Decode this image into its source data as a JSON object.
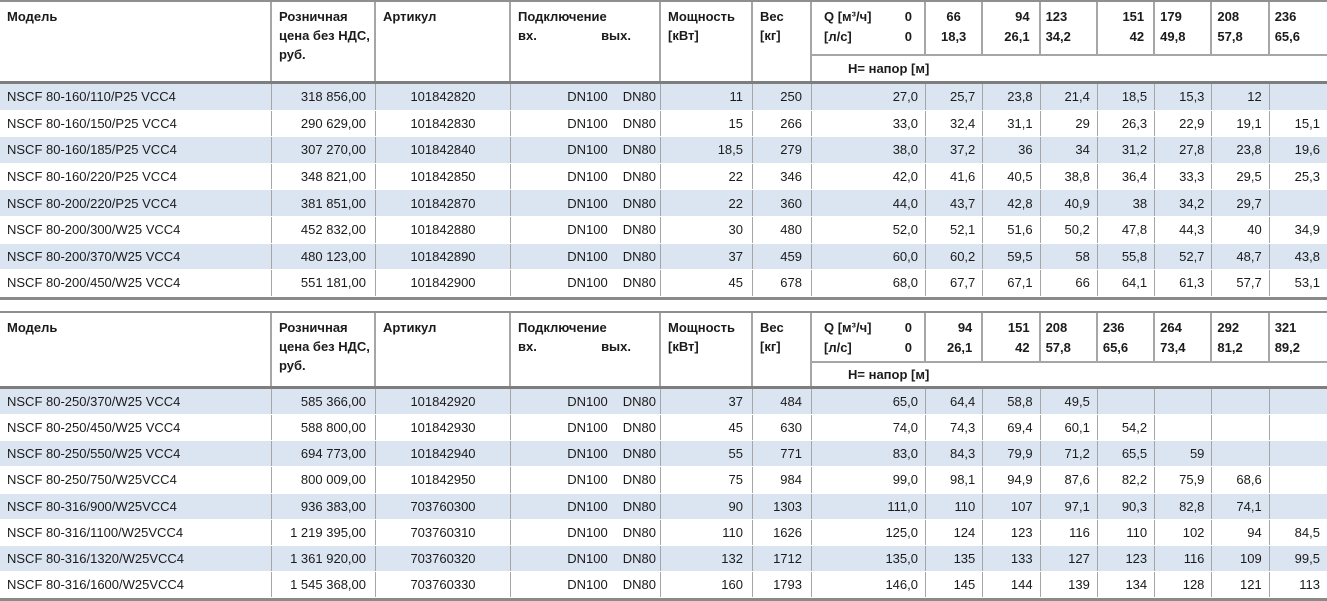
{
  "theme": {
    "row_alt_color": "#dbe5f1",
    "row_color": "#ffffff",
    "grid_line_color": "#a6a6a6",
    "frame_line_color": "#8a8a8a",
    "text_color": "#1b1b1b"
  },
  "tables": [
    {
      "header": {
        "model": "Модель",
        "price_lines": [
          "Розничная",
          "цена без НДС,",
          "руб."
        ],
        "article": "Артикул",
        "connection": "Подключение",
        "connection_in": "вх.",
        "connection_out": "вых.",
        "power_lines": [
          "Мощность",
          "[кВт]"
        ],
        "weight_lines": [
          "Вес",
          "[кг]"
        ],
        "q_label": "Q [м³/ч]",
        "q_zero": "0",
        "ls_label": "[л/с]",
        "ls_zero": "0",
        "h_label": "Н= напор [м]",
        "q_m3h": [
          "66",
          "94",
          "123",
          "151",
          "179",
          "208",
          "236"
        ],
        "q_ls": [
          "18,3",
          "26,1",
          "34,2",
          "42",
          "49,8",
          "57,8",
          "65,6"
        ],
        "q_align": [
          "center",
          "right",
          "left",
          "right",
          "left",
          "left",
          "left"
        ]
      },
      "rows": [
        {
          "model": "NSCF 80-160/110/P25 VCC4",
          "price": "318 856,00",
          "article": "101842820",
          "conn_in": "DN100",
          "conn_out": "DN80",
          "power": "11",
          "weight": "250",
          "h": [
            "27,0",
            "25,7",
            "23,8",
            "21,4",
            "18,5",
            "15,3",
            "12",
            ""
          ]
        },
        {
          "model": "NSCF 80-160/150/P25 VCC4",
          "price": "290 629,00",
          "article": "101842830",
          "conn_in": "DN100",
          "conn_out": "DN80",
          "power": "15",
          "weight": "266",
          "h": [
            "33,0",
            "32,4",
            "31,1",
            "29",
            "26,3",
            "22,9",
            "19,1",
            "15,1"
          ]
        },
        {
          "model": "NSCF 80-160/185/P25 VCC4",
          "price": "307 270,00",
          "article": "101842840",
          "conn_in": "DN100",
          "conn_out": "DN80",
          "power": "18,5",
          "weight": "279",
          "h": [
            "38,0",
            "37,2",
            "36",
            "34",
            "31,2",
            "27,8",
            "23,8",
            "19,6"
          ]
        },
        {
          "model": "NSCF 80-160/220/P25 VCC4",
          "price": "348 821,00",
          "article": "101842850",
          "conn_in": "DN100",
          "conn_out": "DN80",
          "power": "22",
          "weight": "346",
          "h": [
            "42,0",
            "41,6",
            "40,5",
            "38,8",
            "36,4",
            "33,3",
            "29,5",
            "25,3"
          ]
        },
        {
          "model": "NSCF 80-200/220/P25 VCC4",
          "price": "381 851,00",
          "article": "101842870",
          "conn_in": "DN100",
          "conn_out": "DN80",
          "power": "22",
          "weight": "360",
          "h": [
            "44,0",
            "43,7",
            "42,8",
            "40,9",
            "38",
            "34,2",
            "29,7",
            ""
          ]
        },
        {
          "model": "NSCF 80-200/300/W25 VCC4",
          "price": "452 832,00",
          "article": "101842880",
          "conn_in": "DN100",
          "conn_out": "DN80",
          "power": "30",
          "weight": "480",
          "h": [
            "52,0",
            "52,1",
            "51,6",
            "50,2",
            "47,8",
            "44,3",
            "40",
            "34,9"
          ]
        },
        {
          "model": "NSCF 80-200/370/W25 VCC4",
          "price": "480 123,00",
          "article": "101842890",
          "conn_in": "DN100",
          "conn_out": "DN80",
          "power": "37",
          "weight": "459",
          "h": [
            "60,0",
            "60,2",
            "59,5",
            "58",
            "55,8",
            "52,7",
            "48,7",
            "43,8"
          ]
        },
        {
          "model": "NSCF 80-200/450/W25 VCC4",
          "price": "551 181,00",
          "article": "101842900",
          "conn_in": "DN100",
          "conn_out": "DN80",
          "power": "45",
          "weight": "678",
          "h": [
            "68,0",
            "67,7",
            "67,1",
            "66",
            "64,1",
            "61,3",
            "57,7",
            "53,1"
          ]
        }
      ]
    },
    {
      "header": {
        "model": "Модель",
        "price_lines": [
          "Розничная",
          "цена без НДС,",
          "руб."
        ],
        "article": "Артикул",
        "connection": "Подключение",
        "connection_in": "вх.",
        "connection_out": "вых.",
        "power_lines": [
          "Мощность",
          "[кВт]"
        ],
        "weight_lines": [
          "Вес",
          "[кг]"
        ],
        "q_label": "Q [м³/ч]",
        "q_zero": "0",
        "ls_label": "[л/с]",
        "ls_zero": "0",
        "h_label": "Н= напор [м]",
        "q_m3h": [
          "94",
          "151",
          "208",
          "236",
          "264",
          "292",
          "321"
        ],
        "q_ls": [
          "26,1",
          "42",
          "57,8",
          "65,6",
          "73,4",
          "81,2",
          "89,2"
        ],
        "q_align": [
          "right",
          "right",
          "left",
          "left",
          "left",
          "left",
          "left"
        ]
      },
      "rows": [
        {
          "model": "NSCF 80-250/370/W25 VCC4",
          "price": "585 366,00",
          "article": "101842920",
          "conn_in": "DN100",
          "conn_out": "DN80",
          "power": "37",
          "weight": "484",
          "h": [
            "65,0",
            "64,4",
            "58,8",
            "49,5",
            "",
            "",
            "",
            ""
          ]
        },
        {
          "model": "NSCF 80-250/450/W25 VCC4",
          "price": "588 800,00",
          "article": "101842930",
          "conn_in": "DN100",
          "conn_out": "DN80",
          "power": "45",
          "weight": "630",
          "h": [
            "74,0",
            "74,3",
            "69,4",
            "60,1",
            "54,2",
            "",
            "",
            ""
          ]
        },
        {
          "model": "NSCF 80-250/550/W25 VCC4",
          "price": "694 773,00",
          "article": "101842940",
          "conn_in": "DN100",
          "conn_out": "DN80",
          "power": "55",
          "weight": "771",
          "h": [
            "83,0",
            "84,3",
            "79,9",
            "71,2",
            "65,5",
            "59",
            "",
            ""
          ]
        },
        {
          "model": "NSCF 80-250/750/W25VCC4",
          "price": "800 009,00",
          "article": "101842950",
          "conn_in": "DN100",
          "conn_out": "DN80",
          "power": "75",
          "weight": "984",
          "h": [
            "99,0",
            "98,1",
            "94,9",
            "87,6",
            "82,2",
            "75,9",
            "68,6",
            ""
          ]
        },
        {
          "model": "NSCF 80-316/900/W25VCC4",
          "price": "936 383,00",
          "article": "703760300",
          "conn_in": "DN100",
          "conn_out": "DN80",
          "power": "90",
          "weight": "1303",
          "h": [
            "111,0",
            "110",
            "107",
            "97,1",
            "90,3",
            "82,8",
            "74,1",
            ""
          ]
        },
        {
          "model": "NSCF 80-316/1100/W25VCC4",
          "price": "1 219 395,00",
          "article": "703760310",
          "conn_in": "DN100",
          "conn_out": "DN80",
          "power": "110",
          "weight": "1626",
          "h": [
            "125,0",
            "124",
            "123",
            "116",
            "110",
            "102",
            "94",
            "84,5"
          ]
        },
        {
          "model": "NSCF 80-316/1320/W25VCC4",
          "price": "1 361 920,00",
          "article": "703760320",
          "conn_in": "DN100",
          "conn_out": "DN80",
          "power": "132",
          "weight": "1712",
          "h": [
            "135,0",
            "135",
            "133",
            "127",
            "123",
            "116",
            "109",
            "99,5"
          ]
        },
        {
          "model": "NSCF 80-316/1600/W25VCC4",
          "price": "1 545 368,00",
          "article": "703760330",
          "conn_in": "DN100",
          "conn_out": "DN80",
          "power": "160",
          "weight": "1793",
          "h": [
            "146,0",
            "145",
            "144",
            "139",
            "134",
            "128",
            "121",
            "113"
          ]
        }
      ]
    }
  ]
}
